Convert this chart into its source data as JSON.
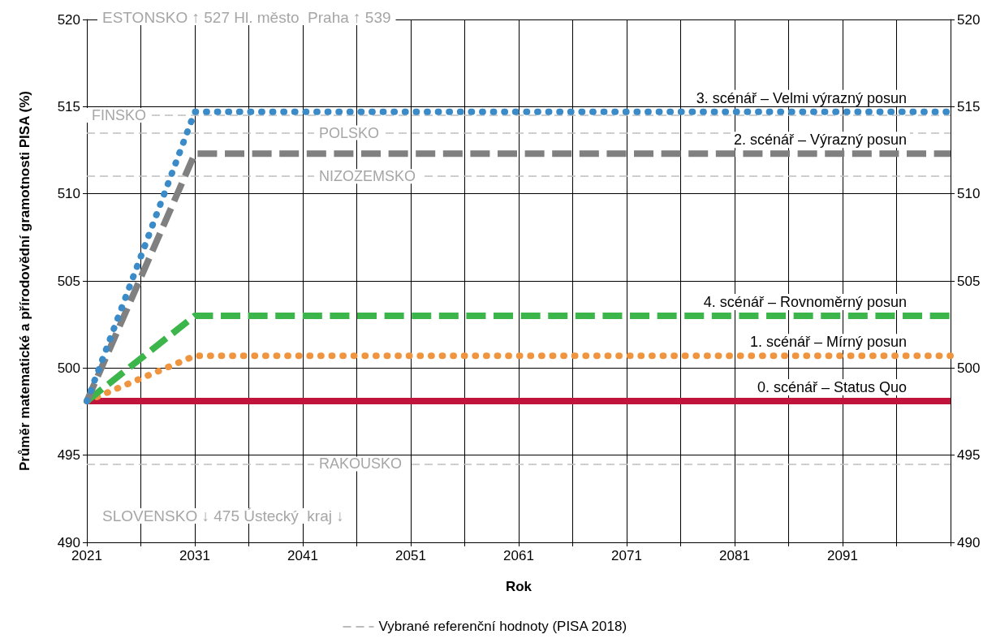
{
  "chart_data": {
    "type": "line",
    "xlabel": "Rok",
    "ylabel": "Průměr matematické a přírodovědní gramotnosti PISA (%)",
    "xlim": [
      2021,
      2101
    ],
    "xticks": [
      2021,
      {
        "value": 2026,
        "label": null
      },
      2031,
      {
        "value": 2036,
        "label": null
      },
      2041,
      {
        "value": 2046,
        "label": null
      },
      2051,
      {
        "value": 2056,
        "label": null
      },
      2061,
      {
        "value": 2066,
        "label": null
      },
      2071,
      {
        "value": 2076,
        "label": null
      },
      2081,
      {
        "value": 2086,
        "label": null
      },
      2091,
      {
        "value": 2096,
        "label": null
      },
      {
        "value": 2101,
        "label": null
      }
    ],
    "ylim": [
      490,
      520
    ],
    "yticks": [
      490,
      495,
      500,
      505,
      510,
      515,
      520
    ],
    "y2lim": [
      490,
      520
    ],
    "y2ticks": [
      490,
      495,
      500,
      505,
      510,
      515,
      520
    ],
    "grid": true,
    "legend": false,
    "marker": "none",
    "x": [
      2021,
      2031,
      2101
    ],
    "series": [
      {
        "name": "0. scénář – Status Quo",
        "color": "#c0143c",
        "line_style": "solid",
        "values": [
          498.1,
          498.1,
          498.1
        ]
      },
      {
        "name": "1. scénář – Mírný posun",
        "color": "#f0953f",
        "line_style": "dotted",
        "values": [
          498.1,
          500.7,
          500.7
        ]
      },
      {
        "name": "4. scénář – Rovnoměrný posun",
        "color": "#3cb54a",
        "line_style": "dashed",
        "values": [
          498.1,
          503.0,
          503.0
        ]
      },
      {
        "name": "2. scénář – Výrazný posun",
        "color": "#808080",
        "line_style": "dashed",
        "values": [
          498.1,
          512.3,
          512.3
        ]
      },
      {
        "name": "3. scénář – Velmi výrazný posun",
        "color": "#3b8bc8",
        "line_style": "dotted",
        "values": [
          498.1,
          514.7,
          514.7
        ]
      }
    ],
    "ref_lines": [
      {
        "axis": "y",
        "value": 514.5,
        "label": "FINSKO",
        "color": "#bfbfbf",
        "line_style": "dashed"
      },
      {
        "axis": "y",
        "value": 513.5,
        "label": "POLSKO",
        "color": "#bfbfbf",
        "line_style": "dashed"
      },
      {
        "axis": "y",
        "value": 511.0,
        "label": "NIZOZEMSKO",
        "color": "#bfbfbf",
        "line_style": "dashed"
      },
      {
        "axis": "y",
        "value": 494.5,
        "label": "RAKOUSKO",
        "color": "#bfbfbf",
        "line_style": "dashed"
      }
    ],
    "annotations": [
      "ESTONSKO ↑ 527 Hl. město  Praha ↑ 539",
      "SLOVENSKO ↓ 475 Ústecký  kraj ↓",
      "Vybrané referenční hodnoty (PISA 2018)"
    ]
  }
}
